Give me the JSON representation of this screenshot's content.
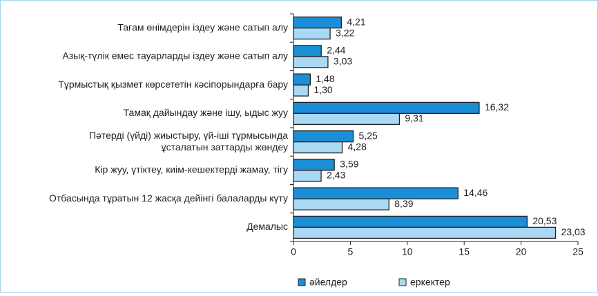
{
  "chart_data": {
    "type": "bar",
    "orientation": "horizontal",
    "categories": [
      "Тағам өнімдерін іздеу және сатып алу",
      "Азық-түлік емес тауарларды іздеу және сатып алу",
      "Тұрмыстық қызмет көрсететін кәсіпорындарға бару",
      "Тамақ дайындау және ішу, ыдыс жуу",
      "Пәтерді (үйді) жиыстыру, үй-іші тұрмысында\nұсталатын заттарды жөндеу",
      "Кір жуу, үтіктеу, киім-кешектерді жамау, тігу",
      "Отбасында тұратын 12 жасқа дейінгі балаларды күту",
      "Демалыс"
    ],
    "series": [
      {
        "name": "әйелдер",
        "color": "#1a8fd8",
        "values": [
          4.21,
          2.44,
          1.48,
          16.32,
          5.25,
          3.59,
          14.46,
          20.53
        ],
        "value_labels": [
          "4,21",
          "2,44",
          "1,48",
          "16,32",
          "5,25",
          "3,59",
          "14,46",
          "20,53"
        ]
      },
      {
        "name": "еркектер",
        "color": "#a9d9f5",
        "values": [
          3.22,
          3.03,
          1.3,
          9.31,
          4.28,
          2.43,
          8.39,
          23.03
        ],
        "value_labels": [
          "3,22",
          "3,03",
          "1,30",
          "9,31",
          "4,28",
          "2,43",
          "8,39",
          "23,03"
        ]
      }
    ],
    "xlim": [
      0,
      25
    ],
    "xticks": [
      0,
      5,
      10,
      15,
      20,
      25
    ],
    "grid": false,
    "legend": "bottom"
  }
}
